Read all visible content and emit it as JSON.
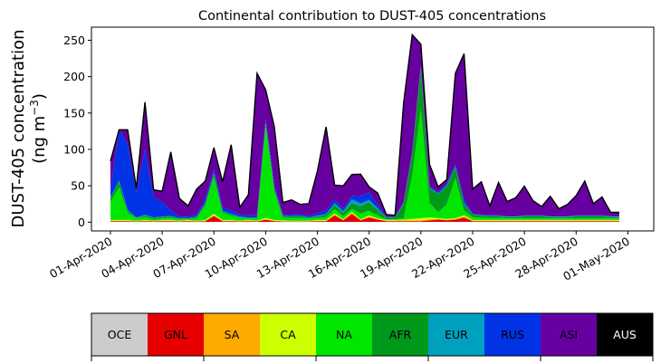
{
  "chart_data": {
    "type": "area",
    "title": "Continental contribution to DUST-405 concentrations",
    "ylabel_line1": "DUST-405 concentration",
    "ylabel_line2": "(ng m",
    "ylabel_sup": "−3",
    "ylabel_close": ")",
    "ylim": [
      -12,
      268
    ],
    "yticks": [
      0,
      50,
      100,
      150,
      200,
      250
    ],
    "xlim_days": [
      -1.1,
      31.5
    ],
    "xticks": [
      {
        "day": 0,
        "label": "01-Apr-2020"
      },
      {
        "day": 3,
        "label": "04-Apr-2020"
      },
      {
        "day": 6,
        "label": "07-Apr-2020"
      },
      {
        "day": 9,
        "label": "10-Apr-2020"
      },
      {
        "day": 12,
        "label": "13-Apr-2020"
      },
      {
        "day": 15,
        "label": "16-Apr-2020"
      },
      {
        "day": 18,
        "label": "19-Apr-2020"
      },
      {
        "day": 21,
        "label": "22-Apr-2020"
      },
      {
        "day": 24,
        "label": "25-Apr-2020"
      },
      {
        "day": 27,
        "label": "28-Apr-2020"
      },
      {
        "day": 30,
        "label": "01-May-2020"
      }
    ],
    "grid": false,
    "x": [
      0,
      0.5,
      1,
      1.5,
      2,
      2.5,
      3,
      3.5,
      4,
      4.5,
      5,
      5.5,
      6,
      6.5,
      7,
      7.5,
      8,
      8.5,
      9,
      9.5,
      10,
      10.5,
      11,
      11.5,
      12,
      12.5,
      13,
      13.5,
      14,
      14.5,
      15,
      15.5,
      16,
      16.5,
      17,
      17.5,
      18,
      18.5,
      19,
      19.5,
      20,
      20.5,
      21,
      21.5,
      22,
      22.5,
      23,
      23.5,
      24,
      24.5,
      25,
      25.5,
      26,
      26.5,
      27,
      27.5,
      28,
      28.5,
      29,
      29.5
    ],
    "series": [
      {
        "name": "OCE",
        "color": "#cccccc",
        "values": [
          0.5,
          0.5,
          0.5,
          0.5,
          0.5,
          0.5,
          0.5,
          0.5,
          0.5,
          0.5,
          0.5,
          0.5,
          0.5,
          0.5,
          0.5,
          0.5,
          0.5,
          0.5,
          0.5,
          0.5,
          0.5,
          0.5,
          0.5,
          0.5,
          0.5,
          0.5,
          0.5,
          0.5,
          0.5,
          0.5,
          0.5,
          0.5,
          0.5,
          0.5,
          0.5,
          0.5,
          0.5,
          0.5,
          0.5,
          0.5,
          0.5,
          0.5,
          0.5,
          0.5,
          0.5,
          0.5,
          0.5,
          0.5,
          0.5,
          0.5,
          0.5,
          0.5,
          0.5,
          0.5,
          0.5,
          0.5,
          0.5,
          0.5,
          0.5,
          0.5
        ]
      },
      {
        "name": "GNL",
        "color": "#e60000",
        "values": [
          1,
          1,
          1,
          0.5,
          1,
          0.5,
          1,
          1,
          0.5,
          1,
          0.5,
          1,
          8,
          1,
          1,
          0.5,
          1,
          0.5,
          3,
          1,
          0.5,
          0.5,
          0.5,
          0.5,
          1,
          1,
          9,
          2,
          11,
          2,
          6,
          3,
          1,
          1,
          1,
          1,
          1,
          2,
          3,
          2,
          3,
          6,
          1,
          1,
          1,
          1,
          1,
          1,
          1,
          1,
          1,
          1,
          1,
          1,
          1,
          1,
          1,
          1,
          1,
          1
        ]
      },
      {
        "name": "SA",
        "color": "#ffaa00",
        "values": [
          0.5,
          0.5,
          0.5,
          0.5,
          0.5,
          0.5,
          0.5,
          0.5,
          0.5,
          0.5,
          0.5,
          0.5,
          1,
          0.5,
          0.5,
          0.5,
          0.5,
          0.5,
          0.5,
          0.5,
          0.5,
          0.5,
          0.5,
          0.5,
          0.5,
          0.5,
          0.5,
          0.5,
          1,
          0.5,
          1,
          0.5,
          0.5,
          0.5,
          1,
          1,
          1,
          1,
          1,
          1,
          1,
          1,
          0.5,
          0.5,
          0.5,
          0.5,
          0.5,
          0.5,
          0.5,
          0.5,
          0.5,
          0.5,
          0.5,
          0.5,
          0.5,
          0.5,
          0.5,
          0.5,
          0.5,
          0.5
        ]
      },
      {
        "name": "CA",
        "color": "#ccff00",
        "values": [
          1,
          1,
          1,
          0.5,
          1,
          0.5,
          1,
          1,
          0.5,
          1,
          0.5,
          1,
          2,
          1,
          1,
          0.5,
          1,
          0.5,
          2,
          1,
          1,
          0.5,
          0.5,
          0.5,
          1,
          1,
          2,
          1,
          2,
          1,
          2,
          1,
          1,
          1,
          1,
          2,
          3,
          3,
          1,
          1,
          1,
          2,
          1,
          1,
          1,
          1,
          1,
          1,
          1,
          1,
          1,
          1,
          1,
          1,
          1,
          1,
          1,
          1,
          1,
          1
        ]
      },
      {
        "name": "NA",
        "color": "#00e600",
        "values": [
          25,
          45,
          10,
          3,
          4,
          2,
          2,
          3,
          2,
          1,
          3,
          20,
          50,
          10,
          6,
          4,
          2,
          3,
          125,
          40,
          3,
          4,
          4,
          3,
          3,
          4,
          6,
          4,
          4,
          8,
          6,
          4,
          1,
          1,
          2,
          60,
          150,
          20,
          8,
          20,
          55,
          6,
          4,
          3,
          3,
          3,
          2,
          2,
          2,
          2,
          2,
          2,
          2,
          2,
          2,
          2,
          2,
          2,
          2,
          2
        ]
      },
      {
        "name": "AFR",
        "color": "#00991a",
        "values": [
          5,
          8,
          3,
          1,
          2,
          2,
          2,
          2,
          1,
          1,
          2,
          3,
          5,
          2,
          2,
          1,
          1,
          1,
          5,
          3,
          2,
          2,
          2,
          1,
          2,
          3,
          6,
          5,
          8,
          10,
          12,
          8,
          2,
          2,
          20,
          30,
          55,
          20,
          25,
          25,
          15,
          10,
          3,
          3,
          2,
          2,
          2,
          2,
          3,
          3,
          3,
          2,
          2,
          2,
          3,
          3,
          3,
          3,
          2,
          2
        ]
      },
      {
        "name": "EUR",
        "color": "#00a0bf",
        "values": [
          1,
          1,
          1,
          0.5,
          1,
          0.5,
          0.5,
          0.5,
          0.5,
          0.5,
          0.5,
          0.5,
          1,
          0.5,
          0.5,
          0.5,
          0.5,
          0.5,
          1,
          0.5,
          0.5,
          0.5,
          0.5,
          0.5,
          1,
          1,
          2,
          2,
          5,
          4,
          3,
          2,
          0.5,
          0.5,
          1,
          1,
          2,
          1,
          1,
          1,
          1,
          1,
          0.5,
          0.5,
          0.5,
          0.5,
          0.5,
          0.5,
          0.5,
          0.5,
          0.5,
          0.5,
          0.5,
          0.5,
          0.5,
          0.5,
          0.5,
          0.5,
          0.5,
          0.5
        ]
      },
      {
        "name": "RUS",
        "color": "#0033e6",
        "values": [
          10,
          70,
          90,
          35,
          90,
          28,
          20,
          8,
          2,
          2,
          3,
          5,
          5,
          5,
          5,
          3,
          3,
          3,
          5,
          5,
          2,
          2,
          2,
          2,
          3,
          5,
          5,
          4,
          4,
          10,
          10,
          5,
          1,
          1,
          1,
          2,
          2,
          2,
          2,
          3,
          3,
          5,
          1,
          1,
          1,
          1,
          1,
          1,
          1,
          1,
          1,
          1,
          1,
          1,
          1,
          1,
          1,
          1,
          1,
          1
        ]
      },
      {
        "name": "ASI",
        "color": "#6600a0",
        "values": [
          40,
          0,
          20,
          5,
          65,
          10,
          15,
          80,
          25,
          15,
          35,
          25,
          30,
          35,
          90,
          10,
          28,
          195,
          40,
          80,
          17,
          20,
          14,
          17,
          58,
          115,
          20,
          31,
          30,
          30,
          8,
          16,
          3,
          2,
          137,
          160,
          30,
          30,
          7,
          5,
          125,
          200,
          34,
          45,
          13,
          45,
          20,
          25,
          40,
          20,
          12,
          27,
          10,
          16,
          27,
          47,
          16,
          25,
          5,
          5
        ]
      },
      {
        "name": "AUS",
        "color": "#000000",
        "values": [
          0,
          0,
          0,
          0,
          0,
          0,
          0,
          0,
          0,
          0,
          0,
          0,
          0,
          0,
          0,
          0,
          0,
          0,
          0,
          0,
          0,
          0,
          0,
          0,
          0,
          0,
          0,
          0,
          0,
          0,
          0,
          0,
          0,
          0,
          0,
          0,
          0,
          0,
          0,
          0,
          0,
          0,
          0,
          0,
          0,
          0,
          0,
          0,
          0,
          0,
          0,
          0,
          0,
          0,
          0,
          0,
          0,
          0,
          0,
          0
        ]
      }
    ]
  }
}
